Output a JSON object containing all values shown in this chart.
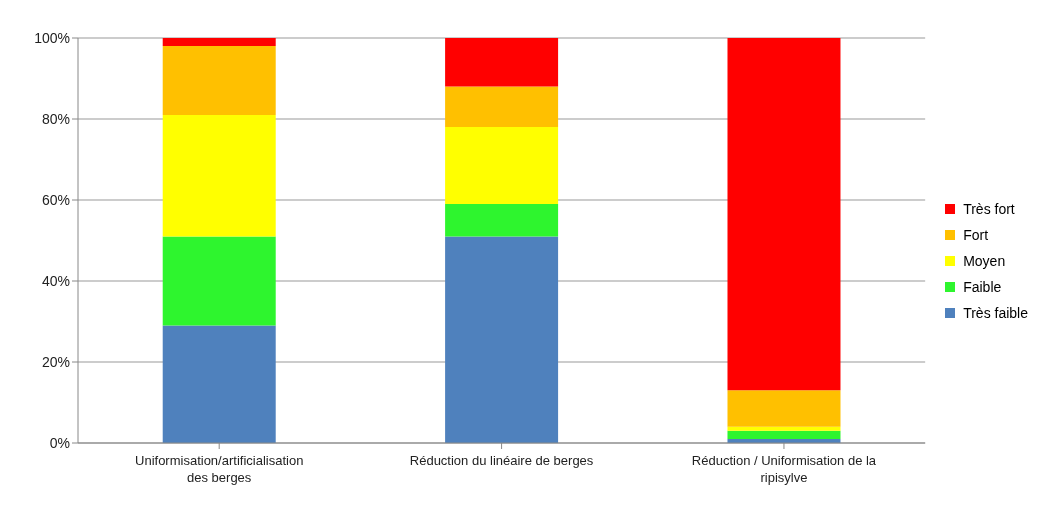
{
  "chart_data": {
    "type": "bar",
    "stacked": true,
    "categories": [
      "Uniformisation/artificialisation des berges",
      "Réduction du linéaire de berges",
      "Réduction / Uniformisation de la ripisylve"
    ],
    "series": [
      {
        "name": "Très faible",
        "color": "#4f81bd",
        "values": [
          29,
          51,
          1
        ]
      },
      {
        "name": "Faible",
        "color": "#2ef52e",
        "values": [
          22,
          8,
          2
        ]
      },
      {
        "name": "Moyen",
        "color": "#ffff00",
        "values": [
          30,
          19,
          1
        ]
      },
      {
        "name": "Fort",
        "color": "#ffc000",
        "values": [
          17,
          10,
          9
        ]
      },
      {
        "name": "Très fort",
        "color": "#ff0000",
        "values": [
          2,
          12,
          87
        ]
      }
    ],
    "ylim": [
      0,
      100
    ],
    "yticks": [
      {
        "value": 0,
        "label": "0%"
      },
      {
        "value": 20,
        "label": "20%"
      },
      {
        "value": 40,
        "label": "40%"
      },
      {
        "value": 60,
        "label": "60%"
      },
      {
        "value": 80,
        "label": "80%"
      },
      {
        "value": 100,
        "label": "100%"
      }
    ],
    "grid": "y",
    "legend": "right"
  }
}
